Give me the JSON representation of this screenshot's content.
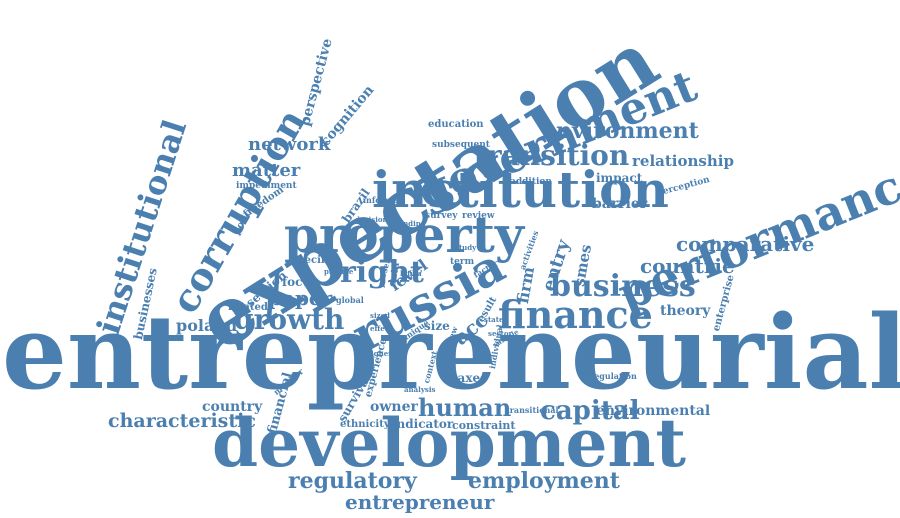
{
  "theme": {
    "word_color": "#4a7fb0"
  },
  "words": [
    {
      "id": "entrepreneurial",
      "text": "entrepreneurial"
    },
    {
      "id": "development",
      "text": "development"
    },
    {
      "id": "expectation",
      "text": "expectation"
    },
    {
      "id": "institution",
      "text": "institution"
    },
    {
      "id": "property",
      "text": "property"
    },
    {
      "id": "russia",
      "text": "russia"
    },
    {
      "id": "performance",
      "text": "performance"
    },
    {
      "id": "government",
      "text": "government"
    },
    {
      "id": "finance",
      "text": "finance"
    },
    {
      "id": "business",
      "text": "business"
    },
    {
      "id": "corruption",
      "text": "corruption"
    },
    {
      "id": "institutional",
      "text": "institutional"
    },
    {
      "id": "transition",
      "text": "transition"
    },
    {
      "id": "environment",
      "text": "environment"
    },
    {
      "id": "growth",
      "text": "growth"
    },
    {
      "id": "right",
      "text": "right"
    },
    {
      "id": "capital",
      "text": "capital"
    },
    {
      "id": "human",
      "text": "human"
    },
    {
      "id": "regulatory",
      "text": "regulatory"
    },
    {
      "id": "employment",
      "text": "employment"
    },
    {
      "id": "entrepreneur",
      "text": "entrepreneur"
    },
    {
      "id": "countrie",
      "text": "countrie"
    },
    {
      "id": "comparative",
      "text": "comparative"
    },
    {
      "id": "paper",
      "text": "paper"
    },
    {
      "id": "characteristic",
      "text": "characteristic"
    },
    {
      "id": "network",
      "text": "network"
    },
    {
      "id": "matter",
      "text": "matter"
    },
    {
      "id": "poland",
      "text": "poland"
    },
    {
      "id": "relationship",
      "text": "relationship"
    },
    {
      "id": "entry",
      "text": "entry"
    },
    {
      "id": "firm",
      "text": "firm"
    },
    {
      "id": "level",
      "text": "level"
    },
    {
      "id": "acc",
      "text": "acc"
    },
    {
      "id": "smes",
      "text": "smes"
    },
    {
      "id": "barrier",
      "text": "barrier"
    },
    {
      "id": "theory",
      "text": "theory"
    },
    {
      "id": "environmental",
      "text": "environmental"
    },
    {
      "id": "country",
      "text": "country"
    },
    {
      "id": "owner",
      "text": "owner"
    },
    {
      "id": "indicator",
      "text": "indicator"
    },
    {
      "id": "constraint",
      "text": "constraint"
    },
    {
      "id": "financial",
      "text": "financial"
    },
    {
      "id": "size",
      "text": "size"
    },
    {
      "id": "taxes",
      "text": "taxes"
    },
    {
      "id": "focus",
      "text": "focus"
    },
    {
      "id": "impact",
      "text": "impact"
    },
    {
      "id": "perspective",
      "text": "perspective"
    },
    {
      "id": "cognition",
      "text": "cognition"
    },
    {
      "id": "education",
      "text": "education"
    },
    {
      "id": "subsequent",
      "text": "subsequent"
    },
    {
      "id": "addition",
      "text": "addition"
    },
    {
      "id": "perception",
      "text": "perception"
    },
    {
      "id": "impediment",
      "text": "impediment"
    },
    {
      "id": "freedom",
      "text": "freedom"
    },
    {
      "id": "policy",
      "text": "policy"
    },
    {
      "id": "brazil",
      "text": "brazil"
    },
    {
      "id": "informal",
      "text": "informal"
    },
    {
      "id": "survey",
      "text": "survey"
    },
    {
      "id": "review",
      "text": "review"
    },
    {
      "id": "decision",
      "text": "decision"
    },
    {
      "id": "businesses",
      "text": "businesses"
    },
    {
      "id": "specific",
      "text": "specific"
    },
    {
      "id": "section",
      "text": "section"
    },
    {
      "id": "related",
      "text": "related"
    },
    {
      "id": "global",
      "text": "global"
    },
    {
      "id": "data",
      "text": "data"
    },
    {
      "id": "present",
      "text": "present"
    },
    {
      "id": "term",
      "text": "term"
    },
    {
      "id": "factor",
      "text": "factor"
    },
    {
      "id": "activities",
      "text": "activities"
    },
    {
      "id": "enterprise",
      "text": "enterprise"
    },
    {
      "id": "regulation",
      "text": "regulation"
    },
    {
      "id": "monitor",
      "text": "monitor"
    },
    {
      "id": "experience",
      "text": "experience"
    },
    {
      "id": "survival",
      "text": "survival"
    },
    {
      "id": "ethnicity",
      "text": "ethnicity"
    },
    {
      "id": "transitional",
      "text": "transitional"
    },
    {
      "id": "individual",
      "text": "individual"
    },
    {
      "id": "analysis",
      "text": "analysis"
    },
    {
      "id": "context",
      "text": "context"
    },
    {
      "id": "effect",
      "text": "effect"
    },
    {
      "id": "sized",
      "text": "sized"
    },
    {
      "id": "unique",
      "text": "unique"
    },
    {
      "id": "result",
      "text": "result"
    },
    {
      "id": "state",
      "text": "state"
    },
    {
      "id": "sector",
      "text": "sector"
    },
    {
      "id": "sample",
      "text": "sample"
    },
    {
      "id": "study",
      "text": "study"
    },
    {
      "id": "provide",
      "text": "provide"
    },
    {
      "id": "latvia",
      "text": "latvia"
    },
    {
      "id": "finding",
      "text": "finding"
    },
    {
      "id": "higher",
      "text": "higher"
    },
    {
      "id": "overview",
      "text": "overview"
    }
  ]
}
